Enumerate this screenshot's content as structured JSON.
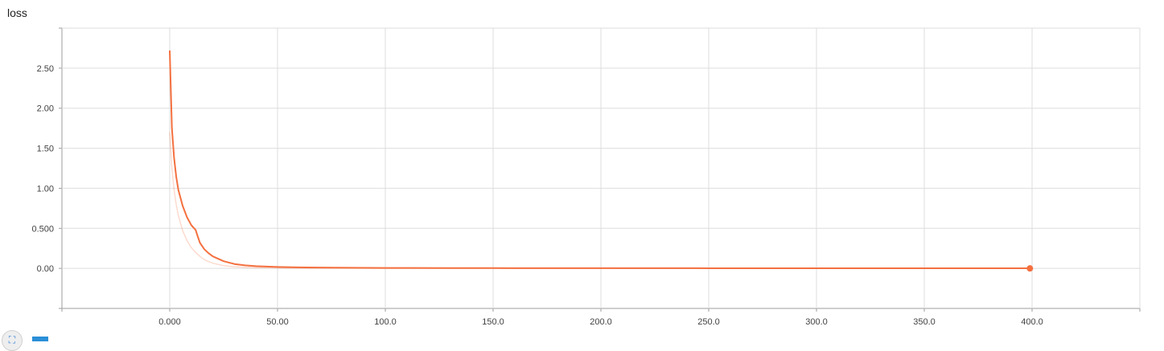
{
  "chart_data": {
    "type": "line",
    "title": "loss",
    "xlabel": "",
    "ylabel": "",
    "xlim": [
      -50,
      450
    ],
    "ylim": [
      -0.5,
      3.0
    ],
    "xticks": [
      "0.000",
      "50.00",
      "100.0",
      "150.0",
      "200.0",
      "250.0",
      "300.0",
      "350.0",
      "400.0"
    ],
    "xtick_values": [
      0,
      50,
      100,
      150,
      200,
      250,
      300,
      350,
      400
    ],
    "yticks": [
      "0.00",
      "0.500",
      "1.00",
      "1.50",
      "2.00",
      "2.50"
    ],
    "ytick_values": [
      0,
      0.5,
      1.0,
      1.5,
      2.0,
      2.5
    ],
    "grid": true,
    "series": [
      {
        "role": "smoothed",
        "color": "#f4703f",
        "x": [
          0,
          1,
          2,
          3,
          4,
          6,
          8,
          10,
          12,
          13,
          14,
          16,
          18,
          20,
          25,
          30,
          35,
          40,
          50,
          60,
          75,
          100,
          130,
          150,
          200,
          243,
          250,
          300,
          350,
          399
        ],
        "y": [
          2.72,
          1.75,
          1.38,
          1.15,
          0.98,
          0.78,
          0.64,
          0.54,
          0.48,
          0.4,
          0.32,
          0.24,
          0.19,
          0.15,
          0.09,
          0.055,
          0.038,
          0.028,
          0.017,
          0.012,
          0.008,
          0.005,
          0.004,
          0.003,
          0.002,
          0.002,
          0.001,
          0.001,
          0.001,
          0.001
        ]
      },
      {
        "role": "raw",
        "color": "#f4703f",
        "opacity": 0.25,
        "x": [
          0,
          1,
          2,
          3,
          4,
          6,
          8,
          10,
          12,
          14,
          16,
          18,
          20,
          25,
          30,
          35,
          40,
          50,
          60,
          75,
          100,
          150,
          200,
          250,
          300,
          350,
          399
        ],
        "y": [
          1.7,
          1.25,
          0.98,
          0.8,
          0.66,
          0.47,
          0.35,
          0.26,
          0.2,
          0.15,
          0.11,
          0.085,
          0.065,
          0.035,
          0.02,
          0.013,
          0.009,
          0.005,
          0.003,
          0.002,
          0.001,
          0.001,
          0.001,
          0.0005,
          0.0005,
          0.0005,
          0.0005
        ]
      }
    ],
    "last_point": {
      "x": 399,
      "y": 0.0
    }
  },
  "icons": {
    "fit": "expand-icon",
    "toggle": "toggle-icon"
  }
}
